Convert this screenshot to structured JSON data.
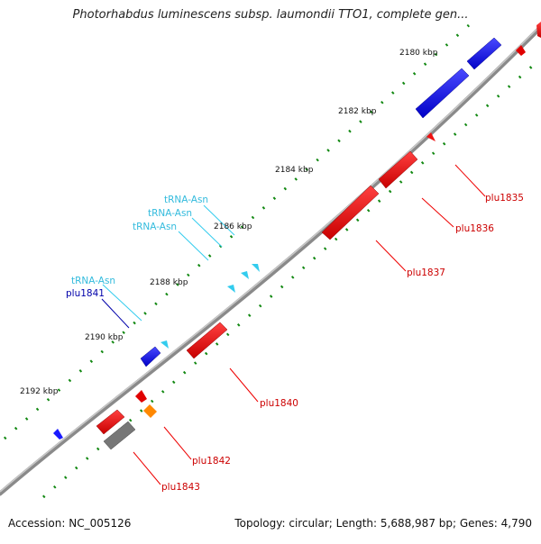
{
  "title": "Photorhabdus luminescens subsp. laumondii TTO1, complete gen...",
  "footer": {
    "accession": "Accession: NC_005126",
    "info": "Topology: circular; Length: 5,688,987 bp; Genes: 4,790"
  },
  "ticks": {
    "kbp_2180": "2180 kbp",
    "kbp_2182": "2182 kbp",
    "kbp_2184": "2184 kbp",
    "kbp_2186": "2186 kbp",
    "kbp_2188": "2188 kbp",
    "kbp_2190": "2190 kbp",
    "kbp_2192": "2192 kbp"
  },
  "labels": {
    "plu1835": "plu1835",
    "plu1836": "plu1836",
    "plu1837": "plu1837",
    "plu1840": "plu1840",
    "plu1841": "plu1841",
    "plu1842": "plu1842",
    "plu1843": "plu1843",
    "trna_1": "tRNA-Asn",
    "trna_2": "tRNA-Asn",
    "trna_3": "tRNA-Asn",
    "trna_4": "tRNA-Asn"
  },
  "colors": {
    "forward_gene": "#0000ee",
    "reverse_gene": "#ee0000",
    "trna": "#33ccee",
    "pseudo": "#777777",
    "orange": "#ff8800",
    "backbone": "#808080",
    "ticks": "#118811",
    "label_red": "#cc0000",
    "label_blue": "#0000aa",
    "label_cyan": "#33bbdd"
  }
}
